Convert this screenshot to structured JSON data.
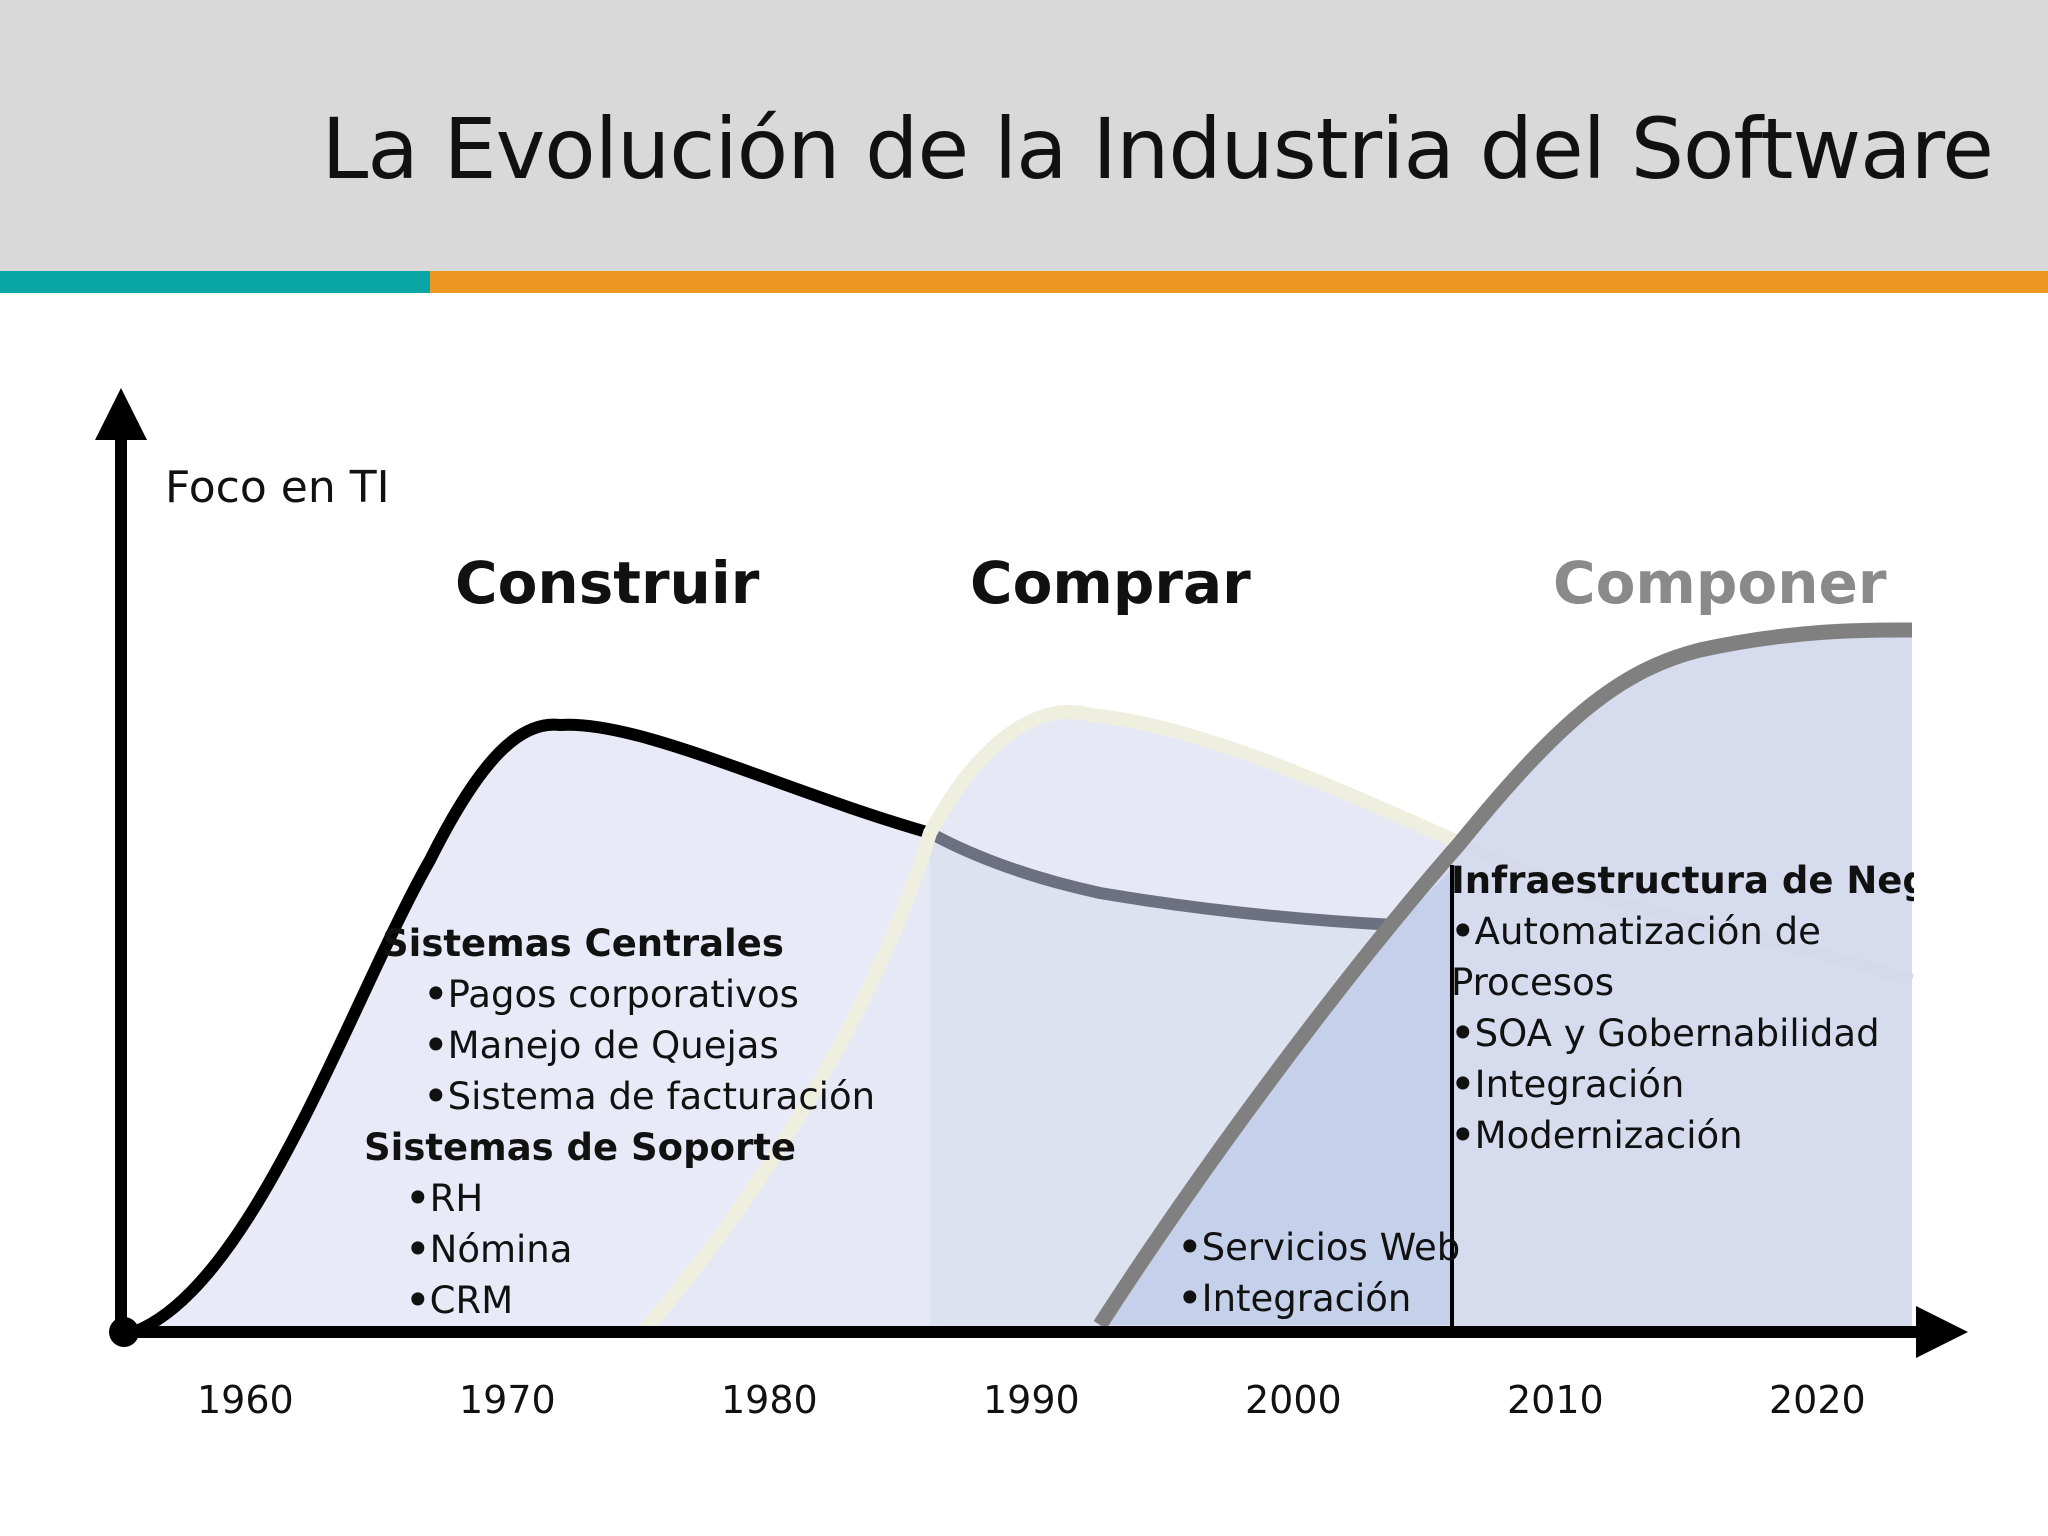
{
  "header": {
    "title": "La Evolución de la Industria del Software"
  },
  "axis": {
    "y_label": "Foco en TI",
    "years": [
      "1960",
      "1970",
      "1980",
      "1990",
      "2000",
      "2010",
      "2020"
    ]
  },
  "phases": [
    {
      "label": "Construir"
    },
    {
      "label": "Comprar"
    },
    {
      "label": "Componer"
    }
  ],
  "construir": {
    "heading1": "Sistemas Centrales",
    "items1": [
      "Pagos corporativos",
      "Manejo de Quejas",
      "Sistema de facturación"
    ],
    "heading2": "Sistemas de Soporte",
    "items2": [
      "RH",
      "Nómina",
      "CRM"
    ]
  },
  "comprar": {
    "items": [
      "Servicios Web",
      "Integración"
    ]
  },
  "componer": {
    "heading": "Infraestructura de Negocio",
    "items": [
      "Automatización de",
      "Procesos",
      "SOA y Gobernabilidad",
      "Integración",
      "Modernización"
    ]
  },
  "colors": {
    "header_bg": "#d9d9d9",
    "band_teal": "#0aa5a5",
    "band_orange": "#ec971f",
    "curve_construir": "#000000",
    "curve_comprar": "#efefe2",
    "curve_componer": "#808080",
    "fill": "#dfe3f3"
  }
}
